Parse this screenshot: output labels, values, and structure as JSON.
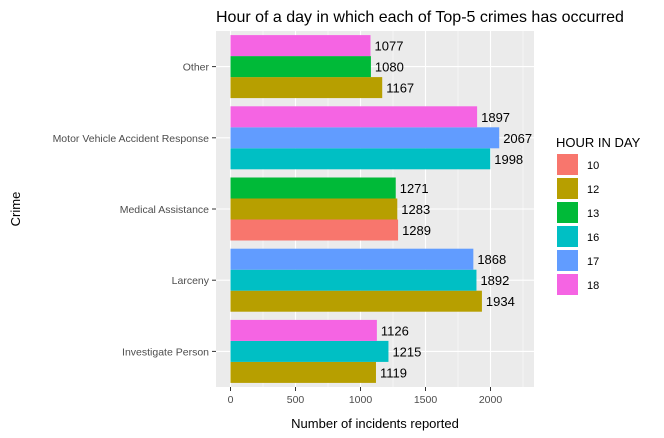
{
  "chart_data": {
    "type": "bar",
    "orientation": "horizontal",
    "title": "Hour of a day in which each of Top-5 crimes has occurred",
    "xlabel": "Number of incidents reported",
    "ylabel": "Crime",
    "xlim": [
      0,
      2200
    ],
    "x_ticks": [
      0,
      500,
      1000,
      1500,
      2000
    ],
    "grid": true,
    "legend": {
      "title": "HOUR IN DAY",
      "position": "right",
      "entries": [
        {
          "label": "10",
          "color": "#F8766D"
        },
        {
          "label": "12",
          "color": "#B79F00"
        },
        {
          "label": "13",
          "color": "#00BA38"
        },
        {
          "label": "16",
          "color": "#00BFC4"
        },
        {
          "label": "17",
          "color": "#619CFF"
        },
        {
          "label": "18",
          "color": "#F564E3"
        }
      ]
    },
    "categories": [
      {
        "name": "Other",
        "bars": [
          {
            "hour": "12",
            "value": 1167
          },
          {
            "hour": "13",
            "value": 1080
          },
          {
            "hour": "18",
            "value": 1077
          }
        ]
      },
      {
        "name": "Motor Vehicle Accident Response",
        "bars": [
          {
            "hour": "16",
            "value": 1998
          },
          {
            "hour": "17",
            "value": 2067
          },
          {
            "hour": "18",
            "value": 1897
          }
        ]
      },
      {
        "name": "Medical Assistance",
        "bars": [
          {
            "hour": "10",
            "value": 1289
          },
          {
            "hour": "12",
            "value": 1283
          },
          {
            "hour": "13",
            "value": 1271
          }
        ]
      },
      {
        "name": "Larceny",
        "bars": [
          {
            "hour": "12",
            "value": 1934
          },
          {
            "hour": "16",
            "value": 1892
          },
          {
            "hour": "17",
            "value": 1868
          }
        ]
      },
      {
        "name": "Investigate Person",
        "bars": [
          {
            "hour": "12",
            "value": 1119
          },
          {
            "hour": "16",
            "value": 1215
          },
          {
            "hour": "18",
            "value": 1126
          }
        ]
      }
    ]
  }
}
